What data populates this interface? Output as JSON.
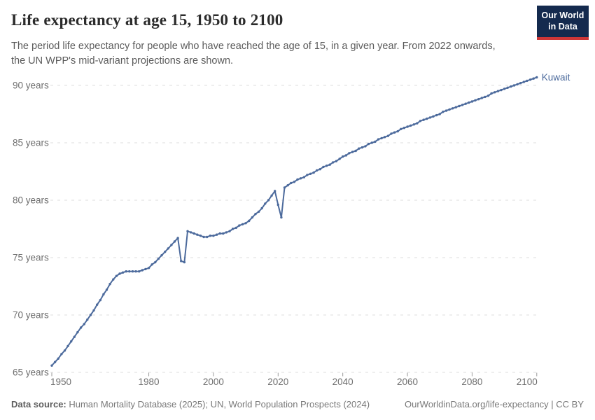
{
  "header": {
    "title": "Life expectancy at age 15, 1950 to 2100",
    "subtitle_lines": [
      "The period life expectancy for people who have reached the age of 15, in a given year. From 2022 onwards,",
      "the UN WPP's mid-variant projections are shown."
    ],
    "logo": {
      "line1": "Our World",
      "line2": "in Data",
      "bg_color": "#142a4e",
      "accent_color": "#ce3637"
    }
  },
  "chart_data": {
    "type": "line",
    "title": "Life expectancy at age 15, 1950 to 2100",
    "xlabel": "",
    "ylabel": "",
    "x_range": {
      "start": 1950,
      "end": 2100,
      "step": 1
    },
    "xlim": [
      1950,
      2100
    ],
    "ylim": [
      65,
      91
    ],
    "x_ticks": [
      1950,
      1980,
      2000,
      2020,
      2040,
      2060,
      2080,
      2100
    ],
    "y_ticks": [
      65,
      70,
      75,
      80,
      85,
      90
    ],
    "y_tick_suffix": " years",
    "grid": "horizontal-dashed",
    "legend_position": "label-at-line-end",
    "colors": {
      "grid": "#dcdcdc",
      "tick": "#9a9a9a",
      "axis_text": "#6e6e6e",
      "series": "#4c6a9c"
    },
    "series": [
      {
        "name": "Kuwait",
        "color": "#4c6a9c",
        "values": [
          65.6,
          65.9,
          66.2,
          66.6,
          66.9,
          67.3,
          67.7,
          68.1,
          68.5,
          68.9,
          69.2,
          69.6,
          70.0,
          70.4,
          70.9,
          71.3,
          71.8,
          72.2,
          72.7,
          73.1,
          73.4,
          73.6,
          73.7,
          73.8,
          73.8,
          73.8,
          73.8,
          73.8,
          73.9,
          74.0,
          74.1,
          74.4,
          74.6,
          74.9,
          75.2,
          75.5,
          75.8,
          76.1,
          76.4,
          76.7,
          74.7,
          74.6,
          77.3,
          77.2,
          77.1,
          77.0,
          76.9,
          76.8,
          76.8,
          76.9,
          76.9,
          77.0,
          77.1,
          77.1,
          77.2,
          77.3,
          77.5,
          77.6,
          77.8,
          77.9,
          78.0,
          78.2,
          78.5,
          78.8,
          79.0,
          79.3,
          79.7,
          80.0,
          80.4,
          80.8,
          79.6,
          78.5,
          81.1,
          81.3,
          81.5,
          81.6,
          81.8,
          81.9,
          82.0,
          82.2,
          82.3,
          82.4,
          82.6,
          82.7,
          82.9,
          83.0,
          83.1,
          83.3,
          83.4,
          83.6,
          83.8,
          83.9,
          84.1,
          84.2,
          84.3,
          84.5,
          84.6,
          84.7,
          84.9,
          85.0,
          85.1,
          85.3,
          85.4,
          85.5,
          85.6,
          85.8,
          85.9,
          86.0,
          86.2,
          86.3,
          86.4,
          86.5,
          86.6,
          86.7,
          86.9,
          87.0,
          87.1,
          87.2,
          87.3,
          87.4,
          87.5,
          87.7,
          87.8,
          87.9,
          88.0,
          88.1,
          88.2,
          88.3,
          88.4,
          88.5,
          88.6,
          88.7,
          88.8,
          88.9,
          89.0,
          89.1,
          89.3,
          89.4,
          89.5,
          89.6,
          89.7,
          89.8,
          89.9,
          90.0,
          90.1,
          90.2,
          90.3,
          90.4,
          90.5,
          90.6,
          90.7
        ]
      }
    ]
  },
  "footer": {
    "datasource_label": "Data source:",
    "datasource_text": " Human Mortality Database (2025); UN, World Population Prospects (2024)",
    "credit": "OurWorldinData.org/life-expectancy | CC BY"
  }
}
